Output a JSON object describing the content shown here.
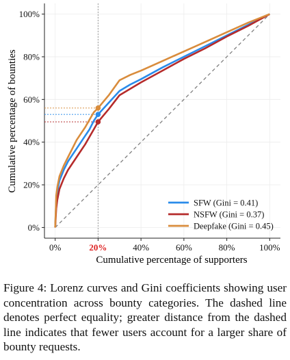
{
  "chart_data": {
    "type": "line",
    "xlabel": "Cumulative percentage of supporters",
    "ylabel": "Cumulative percentage of bounties",
    "xlim": [
      -5,
      105
    ],
    "ylim": [
      -5,
      105
    ],
    "x_ticks": [
      {
        "value": 0,
        "label": "0%"
      },
      {
        "value": 20,
        "label": "20%",
        "highlight": true
      },
      {
        "value": 40,
        "label": "40%"
      },
      {
        "value": 60,
        "label": "60%"
      },
      {
        "value": 80,
        "label": "80%"
      },
      {
        "value": 100,
        "label": "100%"
      }
    ],
    "y_ticks": [
      {
        "value": 0,
        "label": "0%"
      },
      {
        "value": 20,
        "label": "20%"
      },
      {
        "value": 40,
        "label": "40%"
      },
      {
        "value": 60,
        "label": "60%"
      },
      {
        "value": 80,
        "label": "80%"
      },
      {
        "value": 100,
        "label": "100%"
      }
    ],
    "grid": true,
    "legend_position": "bottom-right",
    "equality_line": {
      "x": [
        0,
        100
      ],
      "y": [
        0,
        100
      ],
      "color": "#808080",
      "style": "dashed"
    },
    "reference_x": 20,
    "series": [
      {
        "name": "SFW (Gini = 0.41)",
        "color": "#2a8bea",
        "x": [
          0,
          0.5,
          1,
          2,
          4,
          6,
          8,
          10,
          12,
          14,
          16,
          18,
          20,
          25,
          30,
          35,
          40,
          50,
          60,
          70,
          80,
          90,
          100
        ],
        "y": [
          0,
          13,
          17,
          22,
          27,
          31,
          34,
          37,
          40,
          43,
          46,
          50,
          53,
          58.5,
          64,
          67,
          69.5,
          75,
          80,
          85,
          90,
          95,
          100
        ],
        "marker_at_20": 53
      },
      {
        "name": "NSFW (Gini = 0.37)",
        "color": "#b52b2b",
        "x": [
          0,
          0.5,
          1,
          2,
          4,
          6,
          8,
          10,
          12,
          14,
          16,
          18,
          20,
          25,
          30,
          35,
          40,
          50,
          60,
          70,
          80,
          90,
          100
        ],
        "y": [
          0,
          9,
          13,
          18,
          23,
          27,
          30,
          33,
          36,
          39,
          42.5,
          46,
          49.5,
          55.5,
          62,
          65,
          68,
          73.5,
          79,
          84,
          89.5,
          94.5,
          100
        ],
        "marker_at_20": 49.5
      },
      {
        "name": "Deepfake (Gini = 0.45)",
        "color": "#d98c3c",
        "x": [
          0,
          0.5,
          1,
          2,
          4,
          6,
          8,
          10,
          12,
          14,
          16,
          18,
          20,
          25,
          30,
          35,
          40,
          50,
          60,
          70,
          80,
          90,
          100
        ],
        "y": [
          0,
          15,
          19,
          24,
          29,
          33,
          37,
          41,
          44,
          47,
          50.5,
          54,
          56,
          62,
          69,
          71.5,
          73.5,
          78,
          82.5,
          87,
          91.5,
          96,
          100
        ],
        "marker_at_20": 56
      }
    ]
  },
  "caption": {
    "figure_label": "Figure 4:",
    "text": "Lorenz curves and Gini coefficients showing user concentration across bounty categories. The dashed line denotes perfect equality; greater distance from the dashed line indicates that fewer users account for a larger share of bounty requests."
  }
}
